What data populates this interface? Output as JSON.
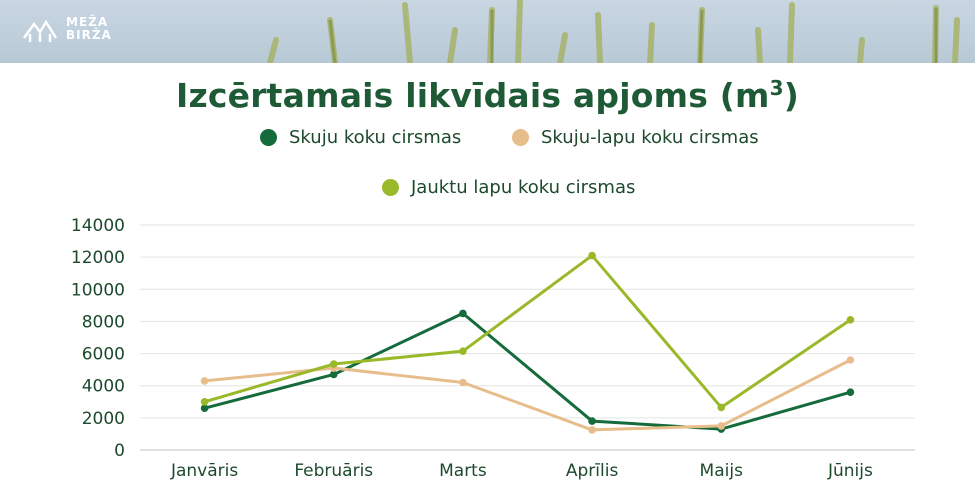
{
  "brand": {
    "line1": "MEŽA",
    "line2": "BIRŽA",
    "logo_icon": "mountain-logo-icon"
  },
  "chart_data": {
    "type": "line",
    "title": "Izcērtamais likvīdais apjoms (m",
    "title_sup": "3",
    "title_end": ")",
    "xlabel": "",
    "ylabel": "",
    "categories": [
      "Janvāris",
      "Februāris",
      "Marts",
      "Aprīlis",
      "Maijs",
      "Jūnijs"
    ],
    "ylim": [
      0,
      14000
    ],
    "yticks": [
      0,
      2000,
      4000,
      6000,
      8000,
      10000,
      12000,
      14000
    ],
    "grid": true,
    "legend_position": "top",
    "series": [
      {
        "name": "Skuju koku cirsmas",
        "color": "#156b3c",
        "values": [
          2600,
          4700,
          8500,
          1800,
          1300,
          3600
        ]
      },
      {
        "name": "Skuju-lapu koku cirsmas",
        "color": "#e8bd8c",
        "values": [
          4300,
          5100,
          4200,
          1250,
          1500,
          5600
        ]
      },
      {
        "name": "Jauktu lapu koku cirsmas",
        "color": "#9ab92a",
        "values": [
          3000,
          5350,
          6150,
          12100,
          2650,
          8100
        ]
      }
    ]
  }
}
